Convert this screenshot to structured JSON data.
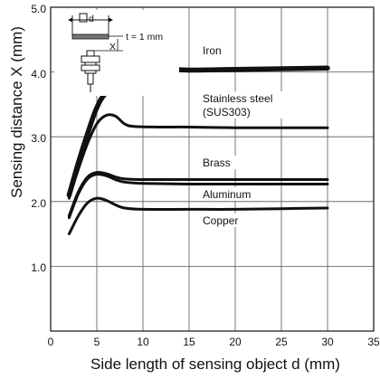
{
  "chart_data": {
    "type": "line",
    "xlabel": "Side length of sensing object d (mm)",
    "ylabel": "Sensing distance X (mm)",
    "xlim": [
      0,
      35
    ],
    "ylim": [
      0,
      5.0
    ],
    "x_ticks": [
      "0",
      "5",
      "10",
      "15",
      "20",
      "25",
      "30",
      "35"
    ],
    "y_ticks": [
      "1.0",
      "2.0",
      "3.0",
      "4.0",
      "5.0"
    ],
    "grid": true,
    "series": [
      {
        "name": "Iron",
        "x": [
          2,
          3,
          4,
          5,
          6,
          8,
          10,
          12,
          15,
          20,
          25,
          30
        ],
        "y": [
          2.1,
          2.6,
          3.05,
          3.45,
          3.68,
          3.92,
          4.02,
          4.05,
          4.03,
          4.04,
          4.05,
          4.06
        ]
      },
      {
        "name": "Stainless steel (SUS303)",
        "x": [
          2,
          3,
          4,
          5,
          6,
          7,
          8,
          9,
          12,
          15,
          20,
          25,
          30
        ],
        "y": [
          2.05,
          2.5,
          2.9,
          3.2,
          3.33,
          3.32,
          3.2,
          3.16,
          3.15,
          3.15,
          3.14,
          3.14,
          3.14
        ]
      },
      {
        "name": "Brass",
        "x": [
          2,
          3,
          4,
          5,
          6,
          7,
          8,
          10,
          15,
          20,
          25,
          30
        ],
        "y": [
          1.78,
          2.15,
          2.38,
          2.45,
          2.43,
          2.38,
          2.35,
          2.34,
          2.34,
          2.34,
          2.34,
          2.34
        ]
      },
      {
        "name": "Aluminum",
        "x": [
          2,
          3,
          4,
          5,
          6,
          7,
          8,
          10,
          15,
          20,
          25,
          30
        ],
        "y": [
          1.75,
          2.12,
          2.35,
          2.42,
          2.4,
          2.34,
          2.3,
          2.28,
          2.27,
          2.27,
          2.27,
          2.27
        ]
      },
      {
        "name": "Copper",
        "x": [
          2,
          3,
          4,
          5,
          6,
          7,
          8,
          10,
          15,
          20,
          25,
          30
        ],
        "y": [
          1.5,
          1.78,
          1.98,
          2.05,
          2.02,
          1.95,
          1.9,
          1.88,
          1.88,
          1.88,
          1.89,
          1.9
        ]
      }
    ],
    "series_labels": [
      "Iron",
      "Stainless steel",
      "(SUS303)",
      "Brass",
      "Aluminum",
      "Copper"
    ],
    "inset": {
      "dimension_d": "d",
      "dimension_x": "X",
      "thickness_note": "t = 1 mm"
    }
  }
}
